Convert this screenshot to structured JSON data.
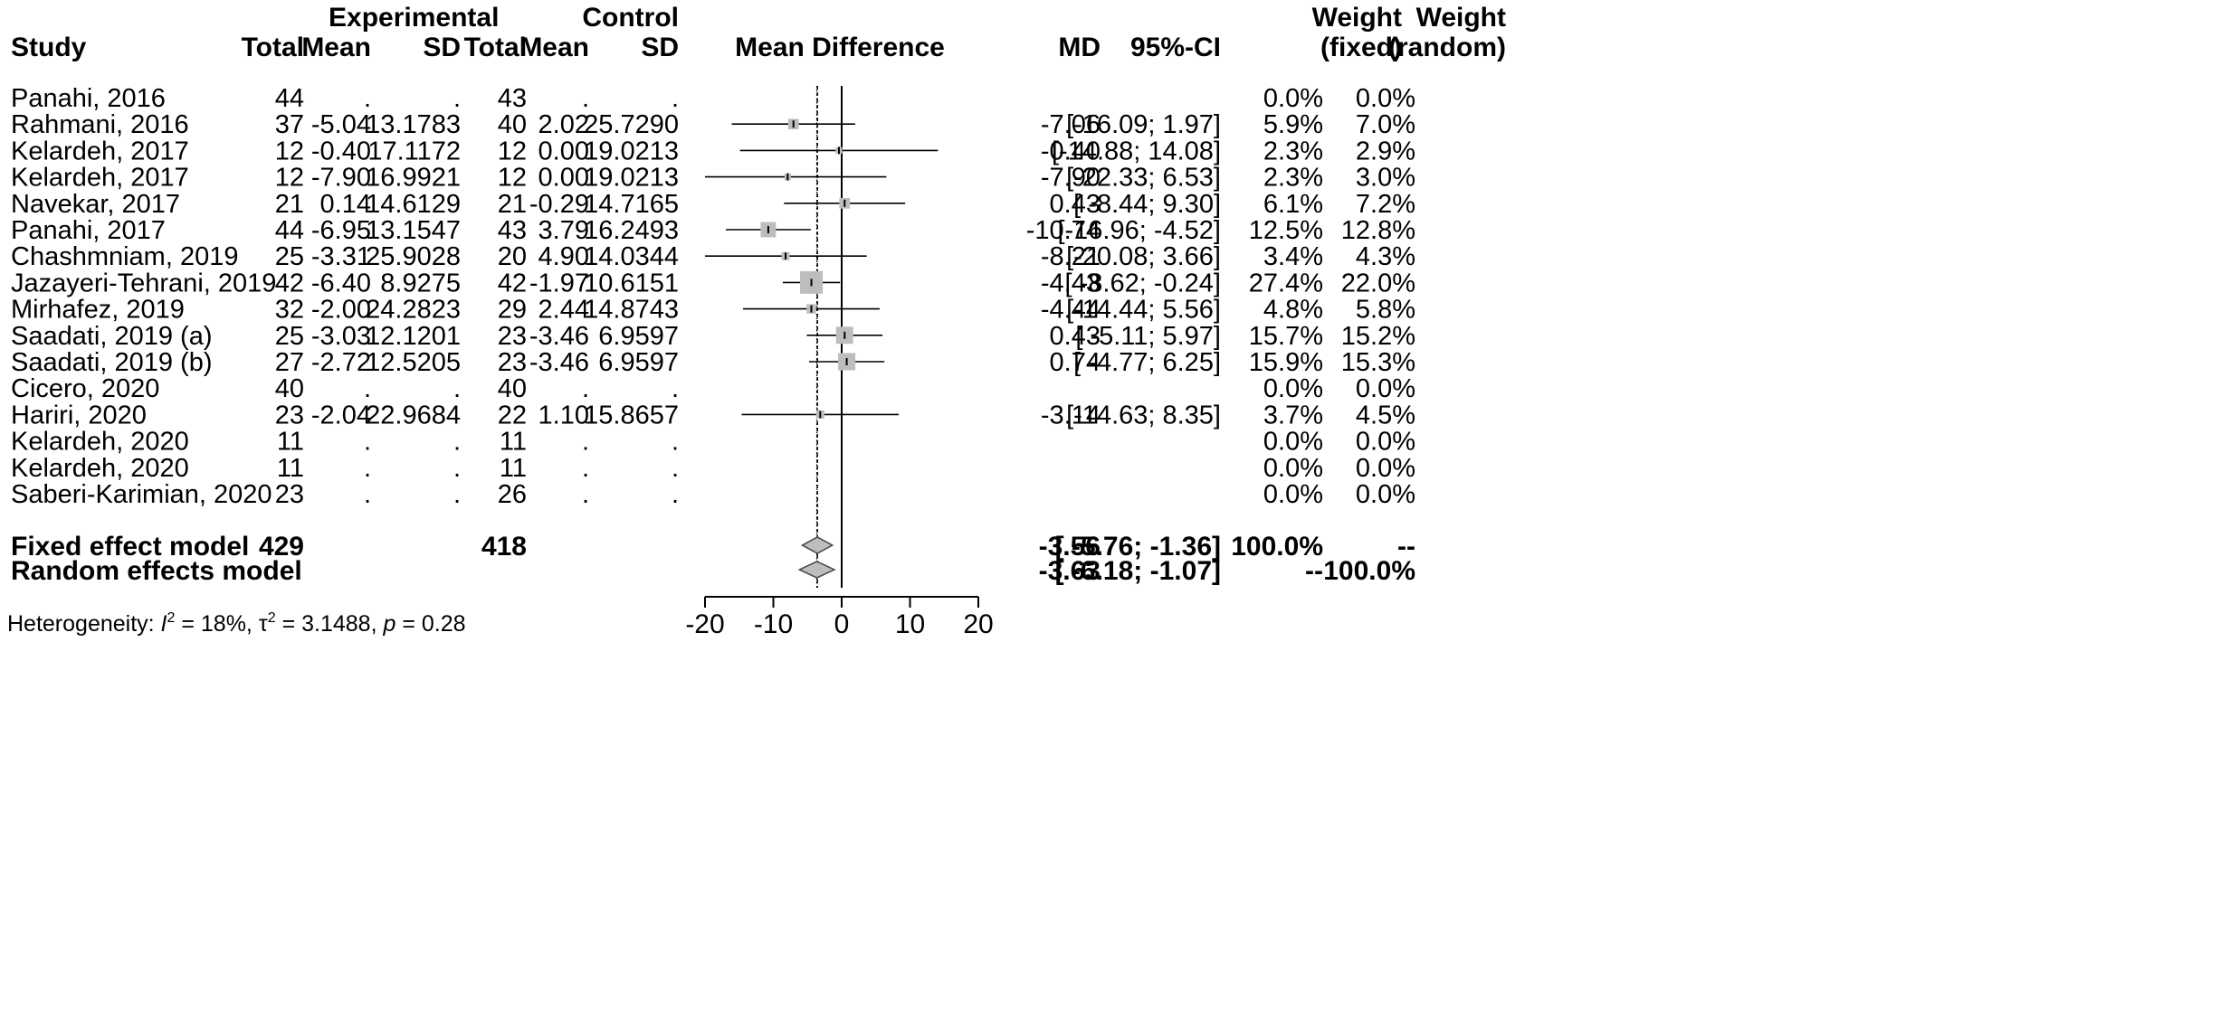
{
  "chart_data": {
    "type": "forest",
    "headers": {
      "study": "Study",
      "experimental": "Experimental",
      "control": "Control",
      "total": "Total",
      "mean": "Mean",
      "sd": "SD",
      "plot_title": "Mean Difference",
      "md": "MD",
      "ci": "95%-CI",
      "weight": "Weight",
      "fixed": "(fixed)",
      "random": "(random)"
    },
    "studies": [
      {
        "name": "Panahi, 2016",
        "e_total": "44",
        "e_mean": ".",
        "e_sd": ".",
        "c_total": "43",
        "c_mean": ".",
        "c_sd": ".",
        "md": null,
        "lower": null,
        "upper": null,
        "md_text": "",
        "ci_text": "",
        "w_fixed": "0.0%",
        "w_random": "0.0%",
        "weight": 0
      },
      {
        "name": "Rahmani, 2016",
        "e_total": "37",
        "e_mean": "-5.04",
        "e_sd": "13.1783",
        "c_total": "40",
        "c_mean": "2.02",
        "c_sd": "25.7290",
        "md": -7.06,
        "lower": -16.09,
        "upper": 1.97,
        "md_text": "-7.06",
        "ci_text": "[-16.09;  1.97]",
        "w_fixed": "5.9%",
        "w_random": "7.0%",
        "weight": 5.9
      },
      {
        "name": "Kelardeh, 2017",
        "e_total": "12",
        "e_mean": "-0.40",
        "e_sd": "17.1172",
        "c_total": "12",
        "c_mean": "0.00",
        "c_sd": "19.0213",
        "md": -0.4,
        "lower": -14.88,
        "upper": 14.08,
        "md_text": "-0.40",
        "ci_text": "[-14.88; 14.08]",
        "w_fixed": "2.3%",
        "w_random": "2.9%",
        "weight": 2.3
      },
      {
        "name": "Kelardeh, 2017",
        "e_total": "12",
        "e_mean": "-7.90",
        "e_sd": "16.9921",
        "c_total": "12",
        "c_mean": "0.00",
        "c_sd": "19.0213",
        "md": -7.9,
        "lower": -22.33,
        "upper": 6.53,
        "md_text": "-7.90",
        "ci_text": "[-22.33;  6.53]",
        "w_fixed": "2.3%",
        "w_random": "3.0%",
        "weight": 2.3
      },
      {
        "name": "Navekar, 2017",
        "e_total": "21",
        "e_mean": "0.14",
        "e_sd": "14.6129",
        "c_total": "21",
        "c_mean": "-0.29",
        "c_sd": "14.7165",
        "md": 0.43,
        "lower": -8.44,
        "upper": 9.3,
        "md_text": "0.43",
        "ci_text": "[ -8.44;  9.30]",
        "w_fixed": "6.1%",
        "w_random": "7.2%",
        "weight": 6.1
      },
      {
        "name": "Panahi, 2017",
        "e_total": "44",
        "e_mean": "-6.95",
        "e_sd": "13.1547",
        "c_total": "43",
        "c_mean": "3.79",
        "c_sd": "16.2493",
        "md": -10.74,
        "lower": -16.96,
        "upper": -4.52,
        "md_text": "-10.74",
        "ci_text": "[-16.96; -4.52]",
        "w_fixed": "12.5%",
        "w_random": "12.8%",
        "weight": 12.5
      },
      {
        "name": "Chashmniam, 2019",
        "e_total": "25",
        "e_mean": "-3.31",
        "e_sd": "25.9028",
        "c_total": "20",
        "c_mean": "4.90",
        "c_sd": "14.0344",
        "md": -8.21,
        "lower": -20.08,
        "upper": 3.66,
        "md_text": "-8.21",
        "ci_text": "[-20.08;  3.66]",
        "w_fixed": "3.4%",
        "w_random": "4.3%",
        "weight": 3.4
      },
      {
        "name": "Jazayeri-Tehrani, 2019",
        "e_total": "42",
        "e_mean": "-6.40",
        "e_sd": "8.9275",
        "c_total": "42",
        "c_mean": "-1.97",
        "c_sd": "10.6151",
        "md": -4.43,
        "lower": -8.62,
        "upper": -0.24,
        "md_text": "-4.43",
        "ci_text": "[ -8.62; -0.24]",
        "w_fixed": "27.4%",
        "w_random": "22.0%",
        "weight": 27.4
      },
      {
        "name": "Mirhafez, 2019",
        "e_total": "32",
        "e_mean": "-2.00",
        "e_sd": "24.2823",
        "c_total": "29",
        "c_mean": "2.44",
        "c_sd": "14.8743",
        "md": -4.44,
        "lower": -14.44,
        "upper": 5.56,
        "md_text": "-4.44",
        "ci_text": "[-14.44;  5.56]",
        "w_fixed": "4.8%",
        "w_random": "5.8%",
        "weight": 4.8
      },
      {
        "name": "Saadati, 2019 (a)",
        "e_total": "25",
        "e_mean": "-3.03",
        "e_sd": "12.1201",
        "c_total": "23",
        "c_mean": "-3.46",
        "c_sd": "6.9597",
        "md": 0.43,
        "lower": -5.11,
        "upper": 5.97,
        "md_text": "0.43",
        "ci_text": "[ -5.11;  5.97]",
        "w_fixed": "15.7%",
        "w_random": "15.2%",
        "weight": 15.7
      },
      {
        "name": "Saadati, 2019 (b)",
        "e_total": "27",
        "e_mean": "-2.72",
        "e_sd": "12.5205",
        "c_total": "23",
        "c_mean": "-3.46",
        "c_sd": "6.9597",
        "md": 0.74,
        "lower": -4.77,
        "upper": 6.25,
        "md_text": "0.74",
        "ci_text": "[ -4.77;  6.25]",
        "w_fixed": "15.9%",
        "w_random": "15.3%",
        "weight": 15.9
      },
      {
        "name": "Cicero, 2020",
        "e_total": "40",
        "e_mean": ".",
        "e_sd": ".",
        "c_total": "40",
        "c_mean": ".",
        "c_sd": ".",
        "md": null,
        "lower": null,
        "upper": null,
        "md_text": "",
        "ci_text": "",
        "w_fixed": "0.0%",
        "w_random": "0.0%",
        "weight": 0
      },
      {
        "name": "Hariri, 2020",
        "e_total": "23",
        "e_mean": "-2.04",
        "e_sd": "22.9684",
        "c_total": "22",
        "c_mean": "1.10",
        "c_sd": "15.8657",
        "md": -3.14,
        "lower": -14.63,
        "upper": 8.35,
        "md_text": "-3.14",
        "ci_text": "[-14.63;  8.35]",
        "w_fixed": "3.7%",
        "w_random": "4.5%",
        "weight": 3.7
      },
      {
        "name": "Kelardeh, 2020",
        "e_total": "11",
        "e_mean": ".",
        "e_sd": ".",
        "c_total": "11",
        "c_mean": ".",
        "c_sd": ".",
        "md": null,
        "lower": null,
        "upper": null,
        "md_text": "",
        "ci_text": "",
        "w_fixed": "0.0%",
        "w_random": "0.0%",
        "weight": 0
      },
      {
        "name": "Kelardeh, 2020",
        "e_total": "11",
        "e_mean": ".",
        "e_sd": ".",
        "c_total": "11",
        "c_mean": ".",
        "c_sd": ".",
        "md": null,
        "lower": null,
        "upper": null,
        "md_text": "",
        "ci_text": "",
        "w_fixed": "0.0%",
        "w_random": "0.0%",
        "weight": 0
      },
      {
        "name": "Saberi-Karimian, 2020",
        "e_total": "23",
        "e_mean": ".",
        "e_sd": ".",
        "c_total": "26",
        "c_mean": ".",
        "c_sd": ".",
        "md": null,
        "lower": null,
        "upper": null,
        "md_text": "",
        "ci_text": "",
        "w_fixed": "0.0%",
        "w_random": "0.0%",
        "weight": 0
      }
    ],
    "fixed_model": {
      "label": "Fixed effect model",
      "e_total": "429",
      "c_total": "418",
      "md": -3.56,
      "lower": -5.76,
      "upper": -1.36,
      "md_text": "-3.56",
      "ci_text": "[ -5.76; -1.36]",
      "w_fixed": "100.0%",
      "w_random": "--"
    },
    "random_model": {
      "label": "Random effects model",
      "md": -3.63,
      "lower": -6.18,
      "upper": -1.07,
      "md_text": "-3.63",
      "ci_text": "[ -6.18; -1.07]",
      "w_fixed": "--",
      "w_random": "100.0%"
    },
    "heterogeneity": {
      "prefix": "Heterogeneity: ",
      "i2_symbol": "I",
      "i2_sup": "2",
      "i2_value": " = 18%, ",
      "tau_symbol": "τ",
      "tau_sup": "2",
      "tau_value": " = 3.1488, ",
      "p_symbol": "p",
      "p_value": " = 0.28"
    },
    "x_axis": {
      "min": -20,
      "max": 20,
      "ticks": [
        -20,
        -10,
        0,
        10,
        20
      ],
      "reference_line": 0
    }
  }
}
